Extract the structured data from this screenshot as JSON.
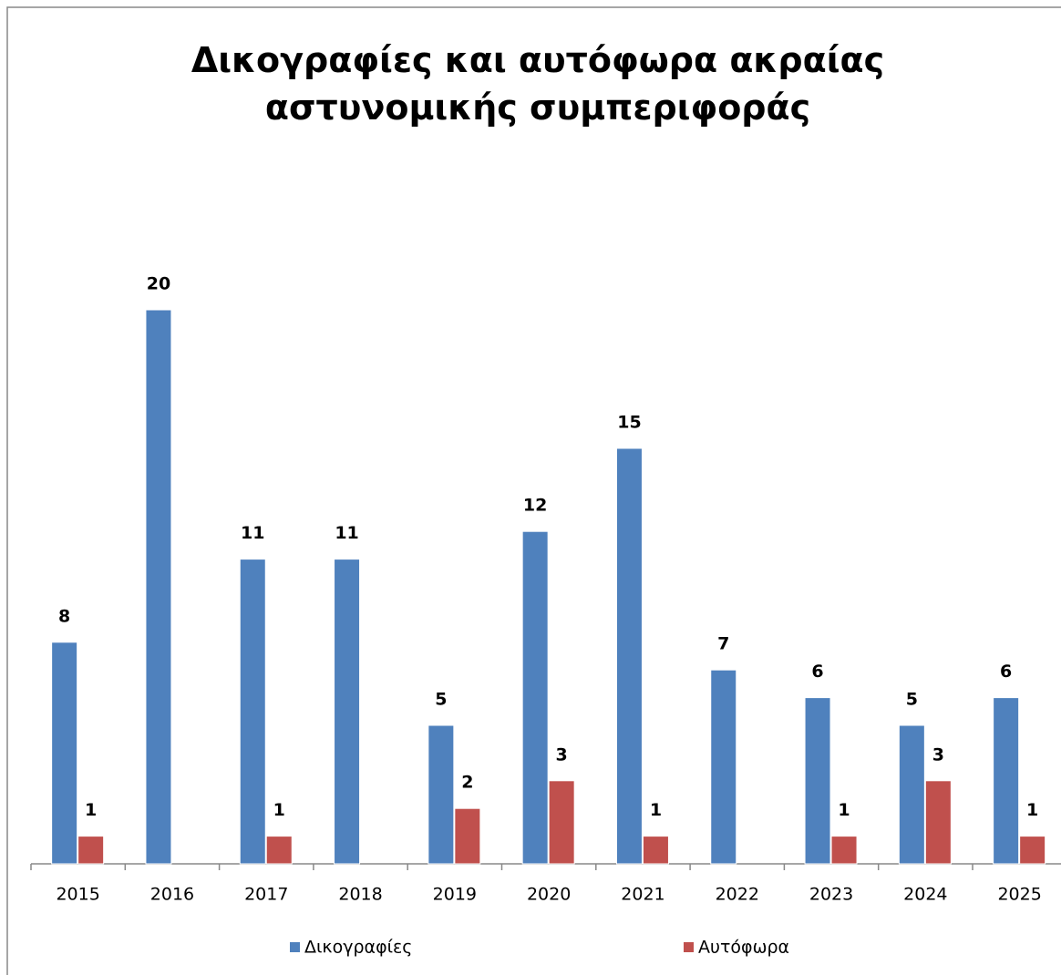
{
  "chart_data": {
    "type": "bar",
    "title": "Δικογραφίες και αυτόφωρα ακραίας αστυνομικής συμπεριφοράς",
    "categories": [
      "2015",
      "2016",
      "2017",
      "2018",
      "2019",
      "2020",
      "2021",
      "2022",
      "2023",
      "2024",
      "2025"
    ],
    "series": [
      {
        "name": "Δικογραφίες",
        "color": "#4f81bd",
        "values": [
          8,
          20,
          11,
          11,
          5,
          12,
          15,
          7,
          6,
          5,
          6
        ]
      },
      {
        "name": "Αυτόφωρα",
        "color": "#c0504d",
        "values": [
          1,
          null,
          1,
          null,
          2,
          3,
          1,
          null,
          1,
          3,
          1
        ]
      }
    ],
    "legend": "bottom"
  }
}
